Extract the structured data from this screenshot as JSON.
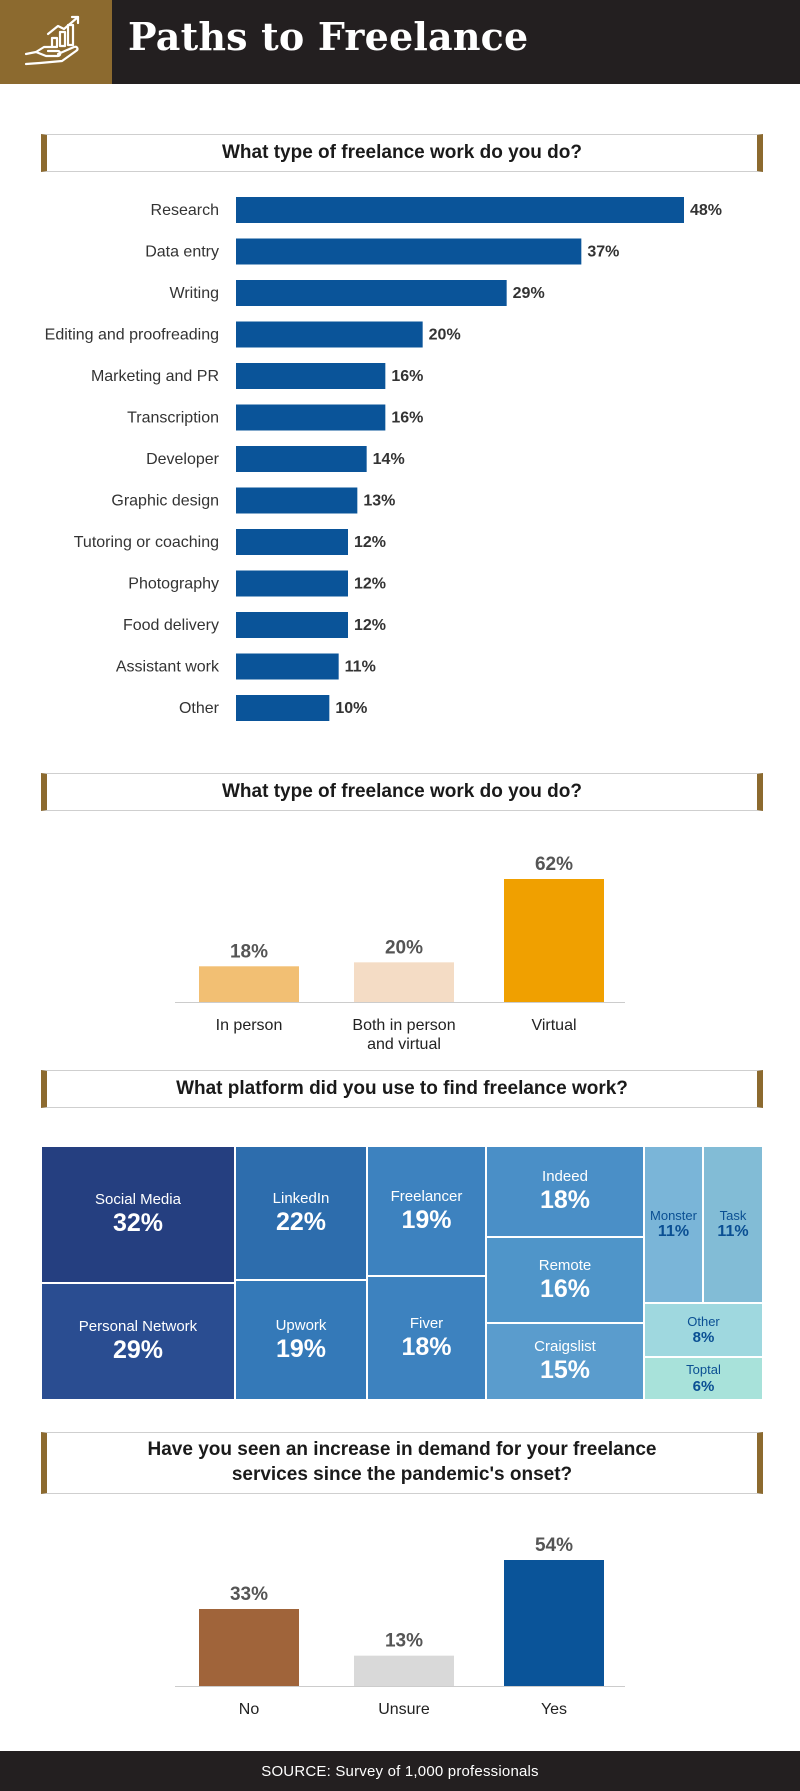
{
  "header": {
    "title": "Paths to Freelance",
    "icon": "hand-growth-chart-icon"
  },
  "colors": {
    "brand_gold": "#8c6a2f",
    "dark": "#231f20",
    "bar_blue": "#0a5499",
    "in_person": "#f2bf73",
    "both": "#f4dcc5",
    "virtual": "#f0a000",
    "no": "#a0643a",
    "unsure": "#d9d9d9",
    "yes": "#0a5499"
  },
  "chart_data": [
    {
      "type": "bar",
      "orientation": "horizontal",
      "title": "What type of freelance work do you do?",
      "categories": [
        "Research",
        "Data entry",
        "Writing",
        "Editing and proofreading",
        "Marketing and PR",
        "Transcription",
        "Developer",
        "Graphic design",
        "Tutoring or coaching",
        "Photography",
        "Food delivery",
        "Assistant work",
        "Other"
      ],
      "values": [
        48,
        37,
        29,
        20,
        16,
        16,
        14,
        13,
        12,
        12,
        12,
        11,
        10
      ],
      "labels": [
        "48%",
        "37%",
        "29%",
        "20%",
        "16%",
        "16%",
        "14%",
        "13%",
        "12%",
        "12%",
        "12%",
        "11%",
        "10%"
      ],
      "unit": "%",
      "xlim": [
        0,
        48
      ]
    },
    {
      "type": "bar",
      "title": "What type of freelance work do you do?",
      "categories": [
        "In person",
        "Both in person\nand virtual",
        "Virtual"
      ],
      "values": [
        18,
        20,
        62
      ],
      "labels": [
        "18%",
        "20%",
        "62%"
      ],
      "unit": "%",
      "ylim": [
        0,
        62
      ]
    },
    {
      "type": "treemap",
      "title": "What platform did you use to find freelance work?",
      "items": [
        {
          "name": "Social Media",
          "value": 32,
          "label": "32%"
        },
        {
          "name": "Personal Network",
          "value": 29,
          "label": "29%"
        },
        {
          "name": "LinkedIn",
          "value": 22,
          "label": "22%"
        },
        {
          "name": "Upwork",
          "value": 19,
          "label": "19%"
        },
        {
          "name": "Freelancer",
          "value": 19,
          "label": "19%"
        },
        {
          "name": "Fiver",
          "value": 18,
          "label": "18%"
        },
        {
          "name": "Indeed",
          "value": 18,
          "label": "18%"
        },
        {
          "name": "Remote",
          "value": 16,
          "label": "16%"
        },
        {
          "name": "Craigslist",
          "value": 15,
          "label": "15%"
        },
        {
          "name": "Monster",
          "value": 11,
          "label": "11%"
        },
        {
          "name": "Task",
          "value": 11,
          "label": "11%"
        },
        {
          "name": "Other",
          "value": 8,
          "label": "8%"
        },
        {
          "name": "Toptal",
          "value": 6,
          "label": "6%"
        }
      ]
    },
    {
      "type": "bar",
      "title": "Have you seen an increase in demand for your freelance\nservices since the pandemic's onset?",
      "categories": [
        "No",
        "Unsure",
        "Yes"
      ],
      "values": [
        33,
        13,
        54
      ],
      "labels": [
        "33%",
        "13%",
        "54%"
      ],
      "unit": "%",
      "ylim": [
        0,
        54
      ]
    }
  ],
  "footer": {
    "source": "SOURCE: Survey of 1,000 professionals"
  }
}
